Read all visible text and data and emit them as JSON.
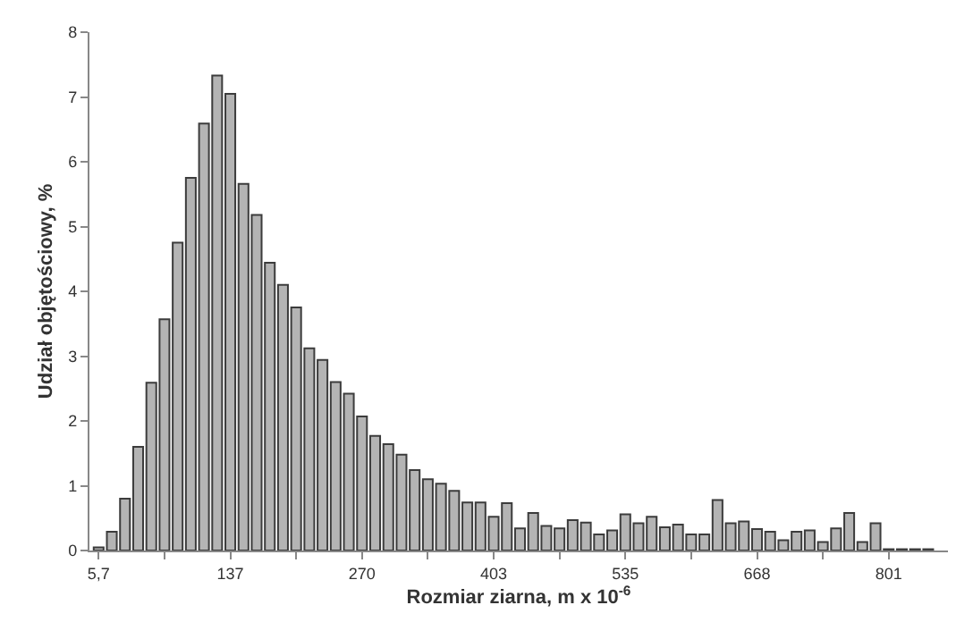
{
  "chart_data": {
    "type": "bar",
    "xlabel": "Rozmiar ziarna, m x 10$^{-6}$",
    "ylabel": "Udział objętościowy, %",
    "categories": [
      "5,7",
      null,
      null,
      null,
      null,
      null,
      null,
      null,
      null,
      null,
      "137",
      null,
      null,
      null,
      null,
      null,
      null,
      null,
      null,
      null,
      "270",
      null,
      null,
      null,
      null,
      null,
      null,
      null,
      null,
      null,
      "403",
      null,
      null,
      null,
      null,
      null,
      null,
      null,
      null,
      null,
      "535",
      null,
      null,
      null,
      null,
      null,
      null,
      null,
      null,
      null,
      "668",
      null,
      null,
      null,
      null,
      null,
      null,
      null,
      null,
      null,
      "801",
      null,
      null,
      null
    ],
    "values": [
      0.05,
      0.29,
      0.8,
      1.6,
      2.59,
      3.57,
      4.75,
      5.75,
      6.59,
      7.33,
      7.05,
      5.66,
      5.18,
      4.44,
      4.1,
      3.75,
      3.12,
      2.94,
      2.6,
      2.42,
      2.07,
      1.77,
      1.64,
      1.48,
      1.24,
      1.1,
      1.03,
      0.92,
      0.74,
      0.74,
      0.52,
      0.73,
      0.34,
      0.58,
      0.38,
      0.34,
      0.47,
      0.43,
      0.25,
      0.31,
      0.56,
      0.42,
      0.52,
      0.36,
      0.4,
      0.25,
      0.25,
      0.78,
      0.42,
      0.45,
      0.33,
      0.29,
      0.16,
      0.29,
      0.31,
      0.13,
      0.34,
      0.58,
      0.13,
      0.42,
      0.02,
      0.02,
      0.02,
      0.02
    ],
    "color": "#b4b4b4",
    "ylim": [
      0,
      8
    ],
    "yticks": [
      0,
      1,
      2,
      3,
      4,
      5,
      6,
      7,
      8
    ],
    "grid": false,
    "legend": false
  }
}
